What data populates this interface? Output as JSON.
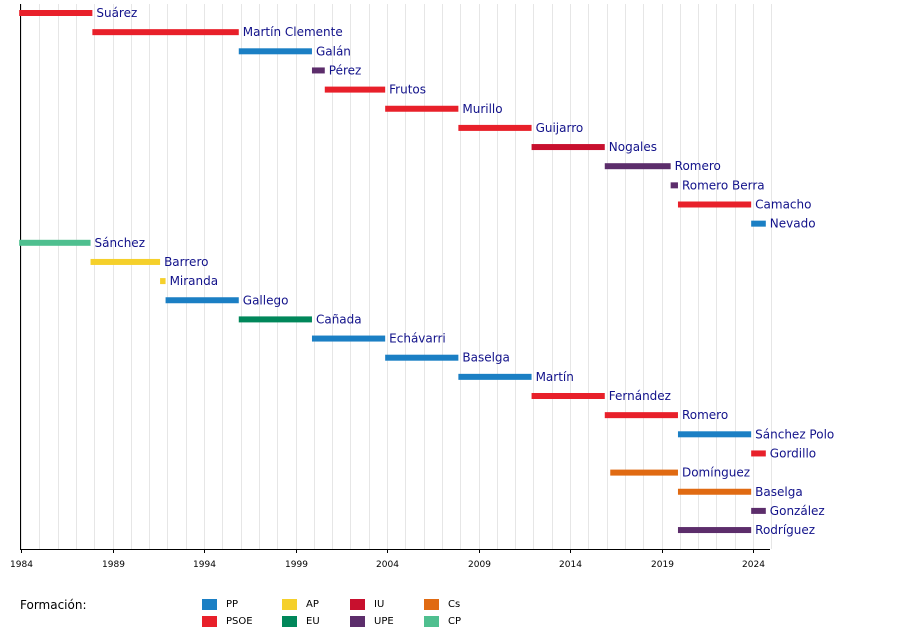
{
  "chart_data": {
    "type": "timeline",
    "x_axis": {
      "min": 1984,
      "max": 2025,
      "ticks": [
        1984,
        1989,
        1994,
        1999,
        2004,
        2009,
        2014,
        2019,
        2024
      ]
    },
    "colors": {
      "PP": "#1b7fc4",
      "PSOE": "#e8202a",
      "AP": "#f5d02b",
      "EU": "#00875a",
      "IU": "#c8102e",
      "UPE": "#5c2d6b",
      "Cs": "#e06a12",
      "CP": "#4fbf8f"
    },
    "rows": [
      {
        "label": "Suárez",
        "party": "PSOE",
        "start": 1983.9,
        "end": 1987.9
      },
      {
        "label": "Martín Clemente",
        "party": "PSOE",
        "start": 1987.9,
        "end": 1995.9
      },
      {
        "label": "Galán",
        "party": "PP",
        "start": 1995.9,
        "end": 1999.9
      },
      {
        "label": "Pérez",
        "party": "UPE",
        "start": 1999.9,
        "end": 2000.6
      },
      {
        "label": "Frutos",
        "party": "PSOE",
        "start": 2000.6,
        "end": 2003.9
      },
      {
        "label": "Murillo",
        "party": "PSOE",
        "start": 2003.9,
        "end": 2007.9
      },
      {
        "label": "Guijarro",
        "party": "PSOE",
        "start": 2007.9,
        "end": 2011.9
      },
      {
        "label": "Nogales",
        "party": "IU",
        "start": 2011.9,
        "end": 2015.9
      },
      {
        "label": "Romero",
        "party": "UPE",
        "start": 2015.9,
        "end": 2019.5
      },
      {
        "label": "Romero Berra",
        "party": "UPE",
        "start": 2019.5,
        "end": 2019.9
      },
      {
        "label": "Camacho",
        "party": "PSOE",
        "start": 2019.9,
        "end": 2023.9
      },
      {
        "label": "Nevado",
        "party": "PP",
        "start": 2023.9,
        "end": 2024.7
      },
      {
        "label": "Sánchez",
        "party": "CP",
        "start": 1983.9,
        "end": 1987.8
      },
      {
        "label": "Barrero",
        "party": "AP",
        "start": 1987.8,
        "end": 1991.6
      },
      {
        "label": "Miranda",
        "party": "AP",
        "start": 1991.6,
        "end": 1991.9
      },
      {
        "label": "Gallego",
        "party": "PP",
        "start": 1991.9,
        "end": 1995.9
      },
      {
        "label": "Cañada",
        "party": "EU",
        "start": 1995.9,
        "end": 1999.9
      },
      {
        "label": "Echávarri",
        "party": "PP",
        "start": 1999.9,
        "end": 2003.9
      },
      {
        "label": "Baselga",
        "party": "PP",
        "start": 2003.9,
        "end": 2007.9
      },
      {
        "label": "Martín",
        "party": "PP",
        "start": 2007.9,
        "end": 2011.9
      },
      {
        "label": "Fernández",
        "party": "PSOE",
        "start": 2011.9,
        "end": 2015.9
      },
      {
        "label": "Romero",
        "party": "PSOE",
        "start": 2015.9,
        "end": 2019.9
      },
      {
        "label": "Sánchez Polo",
        "party": "PP",
        "start": 2019.9,
        "end": 2023.9
      },
      {
        "label": "Gordillo",
        "party": "PSOE",
        "start": 2023.9,
        "end": 2024.7
      },
      {
        "label": "Domínguez",
        "party": "Cs",
        "start": 2016.2,
        "end": 2019.9
      },
      {
        "label": "Baselga",
        "party": "Cs",
        "start": 2019.9,
        "end": 2023.9
      },
      {
        "label": "González",
        "party": "UPE",
        "start": 2023.9,
        "end": 2024.7
      },
      {
        "label": "Rodríguez",
        "party": "UPE",
        "start": 2019.9,
        "end": 2023.9
      }
    ]
  },
  "legend": {
    "title": "Formación:",
    "items": [
      {
        "key": "PP",
        "label": "PP"
      },
      {
        "key": "PSOE",
        "label": "PSOE"
      },
      {
        "key": "AP",
        "label": "AP"
      },
      {
        "key": "EU",
        "label": "EU"
      },
      {
        "key": "IU",
        "label": "IU"
      },
      {
        "key": "UPE",
        "label": "UPE"
      },
      {
        "key": "Cs",
        "label": "Cs"
      },
      {
        "key": "CP",
        "label": "CP"
      }
    ]
  }
}
